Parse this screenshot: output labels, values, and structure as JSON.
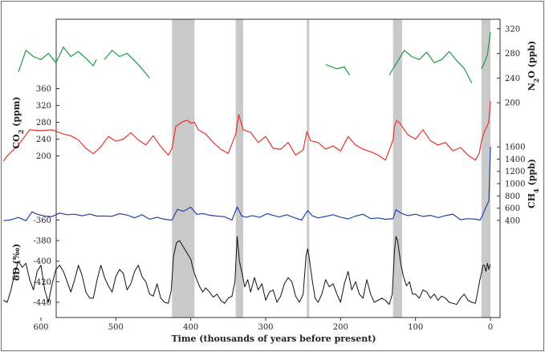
{
  "chart_data": {
    "type": "line",
    "xlabel": "Time (thousands of years before present)",
    "x_ticks": [
      "600",
      "500",
      "400",
      "300",
      "200",
      "100",
      "0"
    ],
    "xlim": [
      650,
      -5
    ],
    "interglacial_bands_kyr": [
      [
        425,
        395
      ],
      [
        340,
        330
      ],
      [
        245,
        242
      ],
      [
        130,
        118
      ],
      [
        12,
        0
      ]
    ],
    "colors": {
      "n2o": "#1a9a46",
      "co2": "#e8322c",
      "ch4": "#2244a6",
      "dd": "#111111",
      "band": "#c9c9c9"
    },
    "series": [
      {
        "key": "n2o",
        "axis_side": "right",
        "axis_label": "N2O (ppb)",
        "ticks": [
          "200",
          "240",
          "280",
          "320"
        ],
        "ylim": [
          195,
          325
        ],
        "segments": [
          {
            "x": [
              630,
              620,
              610,
              600,
              590,
              580,
              570,
              560,
              550,
              540,
              530,
              526
            ],
            "y": [
              250,
              285,
              275,
              270,
              280,
              265,
              290,
              275,
              283,
              272,
              260,
              270
            ]
          },
          {
            "x": [
              515,
              505,
              495,
              485,
              475,
              465,
              455
            ],
            "y": [
              270,
              285,
              275,
              280,
              268,
              255,
              240
            ]
          },
          {
            "x": [
              220,
              205,
              195,
              188
            ],
            "y": [
              262,
              255,
              258,
              245
            ]
          },
          {
            "x": [
              135,
              125,
              115,
              105,
              95,
              85,
              75,
              65,
              55,
              45,
              35,
              25
            ],
            "y": [
              245,
              265,
              285,
              275,
              270,
              282,
              265,
              270,
              283,
              268,
              256,
              232
            ]
          },
          {
            "x": [
              12,
              8,
              4,
              0
            ],
            "y": [
              255,
              265,
              278,
              315
            ]
          }
        ]
      },
      {
        "key": "co2",
        "axis_side": "left",
        "axis_label": "CO2 (ppm)",
        "ticks": [
          "200",
          "240",
          "280",
          "320",
          "360"
        ],
        "ylim": [
          178,
          380
        ],
        "segments": [
          {
            "x": [
              650,
              645,
              630,
              615,
              600,
              585,
              570,
              560,
              550,
              540,
              530,
              520,
              510,
              500,
              490,
              480,
              470,
              460,
              450,
              440,
              430,
              425,
              420,
              410,
              405,
              400,
              395,
              390,
              380,
              370,
              360,
              350,
              340,
              336,
              330,
              320,
              310,
              300,
              290,
              280,
              270,
              260,
              250,
              245,
              240,
              230,
              220,
              210,
              200,
              190,
              180,
              170,
              160,
              150,
              140,
              130,
              128,
              125,
              120,
              115,
              110,
              100,
              90,
              80,
              70,
              60,
              50,
              40,
              30,
              20,
              15,
              12,
              8,
              5,
              2,
              0
            ],
            "y": [
              188,
              200,
              226,
              262,
              260,
              262,
              252,
              248,
              238,
              218,
              205,
              222,
              246,
              235,
              240,
              255,
              238,
              226,
              248,
              222,
              202,
              218,
              270,
              282,
              285,
              278,
              280,
              262,
              252,
              232,
              216,
              206,
              252,
              298,
              262,
              256,
              232,
              246,
              218,
              216,
              232,
              202,
              214,
              258,
              236,
              232,
              216,
              224,
              212,
              246,
              226,
              216,
              210,
              202,
              190,
              238,
              270,
              284,
              276,
              262,
              250,
              240,
              262,
              236,
              226,
              232,
              212,
              220,
              202,
              190,
              206,
              235,
              258,
              268,
              282,
              330
            ]
          }
        ]
      },
      {
        "key": "ch4",
        "axis_side": "right",
        "axis_label": "CH4 (ppb)",
        "ticks": [
          "400",
          "600",
          "800",
          "1000",
          "1200",
          "1400",
          "1600"
        ],
        "ylim": [
          320,
          1680
        ],
        "segments": [
          {
            "x": [
              650,
              640,
              630,
              620,
              612,
              605,
              595,
              585,
              575,
              565,
              555,
              545,
              535,
              525,
              515,
              505,
              495,
              485,
              475,
              465,
              455,
              445,
              435,
              425,
              418,
              410,
              400,
              392,
              384,
              375,
              365,
              355,
              345,
              338,
              332,
              326,
              318,
              308,
              298,
              290,
              282,
              272,
              262,
              252,
              244,
              238,
              230,
              220,
              210,
              200,
              190,
              180,
              170,
              160,
              150,
              140,
              130,
              126,
              122,
              116,
              110,
              100,
              90,
              80,
              70,
              60,
              50,
              40,
              30,
              20,
              14,
              11,
              8,
              5,
              2,
              0
            ],
            "y": [
              395,
              410,
              448,
              395,
              540,
              500,
              470,
              462,
              520,
              492,
              500,
              475,
              502,
              470,
              470,
              468,
              510,
              488,
              442,
              492,
              420,
              450,
              418,
              405,
              580,
              548,
              615,
              498,
              512,
              485,
              470,
              460,
              405,
              620,
              472,
              452,
              478,
              450,
              510,
              482,
              455,
              492,
              445,
              405,
              560,
              478,
              440,
              465,
              492,
              452,
              425,
              470,
              500,
              430,
              440,
              418,
              430,
              575,
              540,
              502,
              478,
              500,
              465,
              482,
              445,
              478,
              502,
              412,
              428,
              420,
              405,
              462,
              560,
              640,
              720,
              1600
            ]
          }
        ]
      },
      {
        "key": "dd",
        "axis_side": "left",
        "axis_label": "δD (‰)",
        "ticks": [
          "-360",
          "-380",
          "-400",
          "-420",
          "-440"
        ],
        "ylim": [
          -447,
          -355
        ],
        "segments": [
          {
            "x": [
              650,
              645,
              640,
              635,
              630,
              625,
              620,
              615,
              610,
              605,
              600,
              595,
              590,
              585,
              580,
              575,
              570,
              565,
              560,
              555,
              550,
              545,
              540,
              535,
              530,
              525,
              520,
              515,
              510,
              505,
              500,
              495,
              490,
              485,
              480,
              475,
              470,
              465,
              460,
              455,
              450,
              445,
              440,
              435,
              430,
              426,
              423,
              419,
              415,
              410,
              405,
              400,
              396,
              392,
              388,
              384,
              380,
              375,
              370,
              365,
              360,
              355,
              350,
              345,
              341,
              338,
              335,
              332,
              328,
              324,
              320,
              315,
              310,
              305,
              300,
              295,
              290,
              285,
              280,
              275,
              270,
              265,
              260,
              255,
              250,
              246,
              244,
              242,
              238,
              234,
              230,
              225,
              220,
              215,
              210,
              205,
              200,
              195,
              190,
              185,
              180,
              175,
              170,
              165,
              160,
              155,
              150,
              145,
              140,
              135,
              131,
              128,
              126,
              124,
              122,
              119,
              116,
              112,
              108,
              104,
              100,
              95,
              90,
              85,
              80,
              75,
              70,
              65,
              60,
              55,
              50,
              45,
              40,
              35,
              30,
              25,
              20,
              17,
              14,
              12,
              10,
              8,
              6,
              4,
              2,
              0
            ],
            "y": [
              -438,
              -440,
              -428,
              -412,
              -400,
              -406,
              -402,
              -418,
              -428,
              -410,
              -404,
              -428,
              -440,
              -422,
              -408,
              -404,
              -410,
              -420,
              -430,
              -418,
              -404,
              -414,
              -430,
              -436,
              -436,
              -418,
              -404,
              -416,
              -424,
              -430,
              -415,
              -408,
              -412,
              -428,
              -422,
              -410,
              -404,
              -415,
              -420,
              -432,
              -434,
              -422,
              -436,
              -440,
              -441,
              -428,
              -395,
              -382,
              -380,
              -386,
              -392,
              -398,
              -410,
              -418,
              -425,
              -430,
              -426,
              -430,
              -435,
              -432,
              -438,
              -441,
              -436,
              -434,
              -420,
              -376,
              -400,
              -410,
              -425,
              -418,
              -430,
              -416,
              -428,
              -422,
              -438,
              -430,
              -428,
              -440,
              -434,
              -422,
              -416,
              -420,
              -434,
              -440,
              -432,
              -394,
              -388,
              -396,
              -418,
              -436,
              -440,
              -432,
              -418,
              -425,
              -422,
              -432,
              -440,
              -422,
              -410,
              -428,
              -420,
              -432,
              -436,
              -418,
              -432,
              -440,
              -438,
              -436,
              -438,
              -442,
              -432,
              -390,
              -376,
              -380,
              -390,
              -405,
              -415,
              -424,
              -420,
              -432,
              -432,
              -436,
              -428,
              -430,
              -436,
              -432,
              -438,
              -434,
              -436,
              -440,
              -441,
              -442,
              -436,
              -432,
              -438,
              -440,
              -441,
              -430,
              -418,
              -412,
              -404,
              -404,
              -410,
              -402,
              -408,
              -403
            ]
          }
        ]
      }
    ]
  }
}
